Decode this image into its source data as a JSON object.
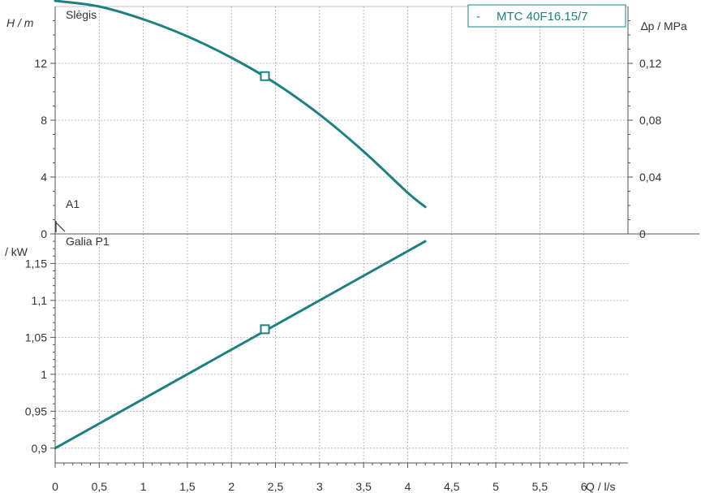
{
  "chart_data": [
    {
      "type": "line",
      "panel": "head",
      "title": "Slėgis",
      "ylabel": "H / m",
      "y2label": "∆p / MPa",
      "ylim": [
        0,
        16
      ],
      "yticks": [
        0,
        4,
        8,
        12
      ],
      "y2lim": [
        0,
        0.16
      ],
      "y2ticks": [
        "0",
        "0,04",
        "0,08",
        "0,12"
      ],
      "y2tick_values": [
        0,
        0.04,
        0.08,
        0.12
      ],
      "grid": true,
      "series": [
        {
          "name": "MTC 40F16.15/7",
          "x": [
            0,
            0.5,
            1,
            1.5,
            2,
            2.5,
            3,
            3.5,
            4,
            4.2
          ],
          "y": [
            16.4,
            16.0,
            15.1,
            13.9,
            12.4,
            10.6,
            8.4,
            5.8,
            2.9,
            1.9
          ]
        }
      ],
      "markers": [
        {
          "x": 2.38,
          "y": 11.1
        }
      ],
      "annotations": [
        "A1"
      ]
    },
    {
      "type": "line",
      "panel": "power",
      "title": "Galia P1",
      "ylabel": "/ kW",
      "ylim": [
        0.88,
        1.19
      ],
      "yticks": [
        "0,9",
        "0,95",
        "1",
        "1,05",
        "1,1",
        "1,15"
      ],
      "ytick_values": [
        0.9,
        0.95,
        1,
        1.05,
        1.1,
        1.15
      ],
      "grid": true,
      "series": [
        {
          "name": "MTC 40F16.15/7",
          "x": [
            0,
            4.2
          ],
          "y": [
            0.9,
            1.18
          ]
        }
      ],
      "markers": [
        {
          "x": 2.38,
          "y": 1.061
        }
      ]
    }
  ],
  "x_axis": {
    "xlim": [
      0,
      6.5
    ],
    "xticks": [
      "0",
      "0,5",
      "1",
      "1,5",
      "2",
      "2,5",
      "3",
      "3,5",
      "4",
      "4,5",
      "5",
      "5,5",
      "6"
    ],
    "xtick_values": [
      0,
      0.5,
      1,
      1.5,
      2,
      2.5,
      3,
      3.5,
      4,
      4.5,
      5,
      5.5,
      6
    ],
    "xlabel": "Q / l/s"
  },
  "legend": {
    "marker": "-",
    "label": "MTC 40F16.15/7",
    "position": "top-right"
  },
  "colors": {
    "curve": "#1e8080",
    "legend_border": "#1e8080",
    "grid": "#a9a9a9",
    "text": "#333333"
  }
}
